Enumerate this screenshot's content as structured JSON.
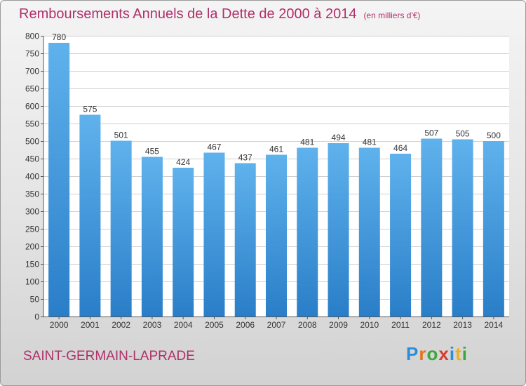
{
  "header": {
    "title": "Remboursements Annuels de la Dette de 2000 à 2014",
    "unit": "(en milliers d'€)"
  },
  "footer": {
    "city": "SAINT-GERMAIN-LAPRADE",
    "logo": "Proxiti"
  },
  "colors": {
    "title": "#b0306a",
    "bar_light": "#5fb2ec",
    "bar_dark": "#2a7ec8",
    "grid": "#d0d0d0"
  },
  "chart_data": {
    "type": "bar",
    "title": "Remboursements Annuels de la Dette de 2000 à 2014",
    "xlabel": "",
    "ylabel": "",
    "categories": [
      "2000",
      "2001",
      "2002",
      "2003",
      "2004",
      "2005",
      "2006",
      "2007",
      "2008",
      "2009",
      "2010",
      "2011",
      "2012",
      "2013",
      "2014"
    ],
    "values": [
      780,
      575,
      501,
      455,
      424,
      467,
      437,
      461,
      481,
      494,
      481,
      464,
      507,
      505,
      500
    ],
    "ylim": [
      0,
      800
    ],
    "yticks": [
      0,
      50,
      100,
      150,
      200,
      250,
      300,
      350,
      400,
      450,
      500,
      550,
      600,
      650,
      700,
      750,
      800
    ],
    "grid": true,
    "legend": "none"
  }
}
